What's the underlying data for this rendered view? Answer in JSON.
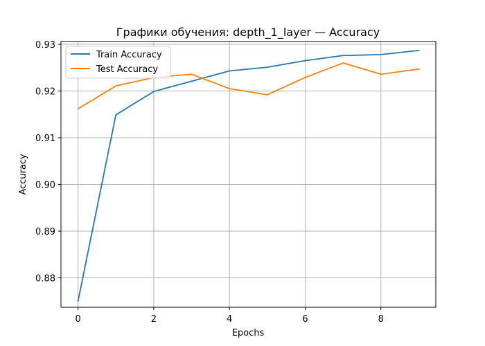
{
  "chart_data": {
    "type": "line",
    "title": "Графики обучения: depth_1_layer — Accuracy",
    "xlabel": "Epochs",
    "ylabel": "Accuracy",
    "xlim": [
      -0.45,
      9.45
    ],
    "ylim": [
      0.8737,
      0.9306
    ],
    "xticks": [
      0,
      2,
      4,
      6,
      8
    ],
    "yticks": [
      0.88,
      0.89,
      0.9,
      0.91,
      0.92,
      0.93
    ],
    "ytick_labels": [
      "0.88",
      "0.89",
      "0.90",
      "0.91",
      "0.92",
      "0.93"
    ],
    "grid": true,
    "legend_position": "upper-left",
    "x": [
      0,
      1,
      2,
      3,
      4,
      5,
      6,
      7,
      8,
      9
    ],
    "series": [
      {
        "name": "Train Accuracy",
        "color": "#1f77b4",
        "values": [
          0.875,
          0.9149,
          0.9199,
          0.9221,
          0.9243,
          0.9251,
          0.9265,
          0.9276,
          0.9278,
          0.9287
        ]
      },
      {
        "name": "Test Accuracy",
        "color": "#ff7f0e",
        "values": [
          0.9162,
          0.9211,
          0.9229,
          0.9236,
          0.9205,
          0.9192,
          0.9229,
          0.926,
          0.9236,
          0.9247
        ]
      }
    ]
  }
}
